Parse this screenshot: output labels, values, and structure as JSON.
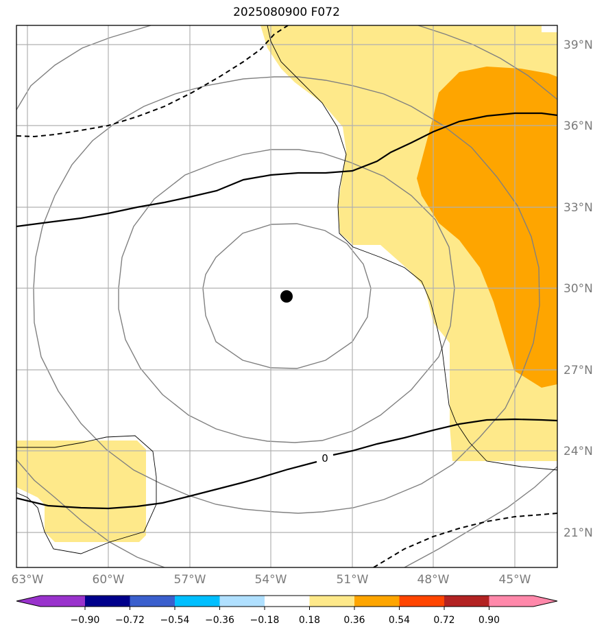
{
  "title": "2025080900 F072",
  "map": {
    "lat_ticks": [
      "39°N",
      "36°N",
      "33°N",
      "30°N",
      "27°N",
      "24°N",
      "21°N"
    ],
    "lon_ticks": [
      "63°W",
      "60°W",
      "57°W",
      "54°W",
      "51°W",
      "48°W",
      "45°W"
    ],
    "contour_label": "0",
    "center_marker": {
      "lon": -53.4,
      "lat": 29.7
    },
    "colors": {
      "fill_low": "#fee98a",
      "fill_mid": "#fea500",
      "isobar": "#808080",
      "zero_contour": "#000000",
      "coast": "#000000"
    }
  },
  "colorbar": {
    "ticks": [
      "−0.90",
      "−0.72",
      "−0.54",
      "−0.36",
      "−0.18",
      "0.18",
      "0.36",
      "0.54",
      "0.72",
      "0.90"
    ],
    "colors": [
      "#9932cc",
      "#00008b",
      "#3a5fcd",
      "#00bfff",
      "#b0e0ff",
      "#ffffff",
      "#fee98a",
      "#fea500",
      "#ff4500",
      "#b22222",
      "#ff88aa",
      "#ff88aa"
    ]
  }
}
